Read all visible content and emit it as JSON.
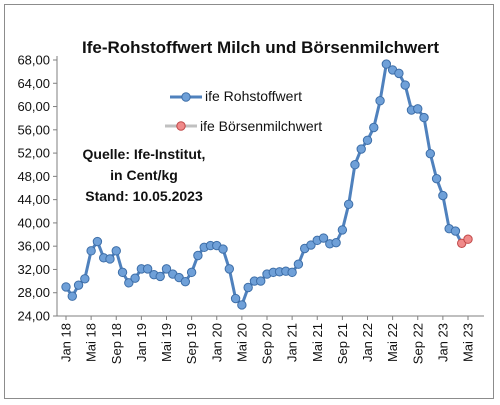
{
  "chart_data": {
    "type": "line",
    "title": "Ife-Rohstoffwert Milch und Börsenmilchwert",
    "source_lines": [
      "Quelle: Ife-Institut,",
      "in Cent/kg",
      "Stand: 10.05.2023"
    ],
    "ylim": [
      24,
      68
    ],
    "yticks": [
      "24,00",
      "28,00",
      "32,00",
      "36,00",
      "40,00",
      "44,00",
      "48,00",
      "52,00",
      "56,00",
      "60,00",
      "64,00",
      "68,00"
    ],
    "xlim": [
      "2018-01",
      "2023-05"
    ],
    "x_tick_labels": [
      "Jan 18",
      "Mai 18",
      "Sep 18",
      "Jan 19",
      "Mai 19",
      "Sep 19",
      "Jan 20",
      "Mai 20",
      "Sep 20",
      "Jan 21",
      "Mai 21",
      "Sep 21",
      "Jan 22",
      "Mai 22",
      "Sep 22",
      "Jan 23",
      "Mai 23"
    ],
    "grid": false,
    "legend_position": "top-right",
    "series": [
      {
        "name": "ife Rohstoffwert",
        "color": "#4f81bd",
        "x": [
          "2018-01",
          "2018-02",
          "2018-03",
          "2018-04",
          "2018-05",
          "2018-06",
          "2018-07",
          "2018-08",
          "2018-09",
          "2018-10",
          "2018-11",
          "2018-12",
          "2019-01",
          "2019-02",
          "2019-03",
          "2019-04",
          "2019-05",
          "2019-06",
          "2019-07",
          "2019-08",
          "2019-09",
          "2019-10",
          "2019-11",
          "2019-12",
          "2020-01",
          "2020-02",
          "2020-03",
          "2020-04",
          "2020-05",
          "2020-06",
          "2020-07",
          "2020-08",
          "2020-09",
          "2020-10",
          "2020-11",
          "2020-12",
          "2021-01",
          "2021-02",
          "2021-03",
          "2021-04",
          "2021-05",
          "2021-06",
          "2021-07",
          "2021-08",
          "2021-09",
          "2021-10",
          "2021-11",
          "2021-12",
          "2022-01",
          "2022-02",
          "2022-03",
          "2022-04",
          "2022-05",
          "2022-06",
          "2022-07",
          "2022-08",
          "2022-09",
          "2022-10",
          "2022-11",
          "2022-12",
          "2023-01",
          "2023-02",
          "2023-03"
        ],
        "values": [
          29.0,
          27.4,
          29.3,
          30.4,
          35.2,
          36.8,
          34.0,
          33.8,
          35.2,
          31.5,
          29.7,
          30.5,
          32.1,
          32.1,
          31.1,
          30.8,
          32.1,
          31.2,
          30.6,
          29.9,
          31.5,
          34.4,
          35.8,
          36.1,
          36.1,
          35.5,
          32.1,
          27.0,
          25.9,
          28.9,
          30.0,
          30.0,
          31.2,
          31.5,
          31.6,
          31.7,
          31.5,
          32.9,
          35.6,
          36.2,
          37.0,
          37.4,
          36.4,
          36.6,
          38.8,
          43.2,
          50.0,
          52.7,
          54.2,
          56.4,
          61.0,
          67.3,
          66.3,
          65.7,
          63.7,
          59.4,
          59.6,
          58.1,
          51.9,
          47.6,
          44.7,
          39.0,
          38.6
        ]
      },
      {
        "name": "ife Börsenmilchwert",
        "color": "#e66c6c",
        "x": [
          "2023-04",
          "2023-05"
        ],
        "values": [
          36.5,
          37.2
        ]
      }
    ]
  }
}
